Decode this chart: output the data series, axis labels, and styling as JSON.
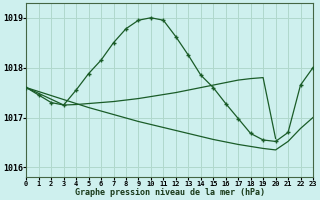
{
  "title": "Graphe pression niveau de la mer (hPa)",
  "bg_color": "#cef0ee",
  "grid_color": "#b0d8cc",
  "line_color": "#1a5c28",
  "xlim": [
    0,
    23
  ],
  "ylim": [
    1015.8,
    1019.3
  ],
  "yticks": [
    1016,
    1017,
    1018,
    1019
  ],
  "xticks": [
    0,
    1,
    2,
    3,
    4,
    5,
    6,
    7,
    8,
    9,
    10,
    11,
    12,
    13,
    14,
    15,
    16,
    17,
    18,
    19,
    20,
    21,
    22,
    23
  ],
  "series_main_x": [
    0,
    1,
    2,
    3,
    4,
    5,
    6,
    7,
    8,
    9,
    10,
    11,
    12,
    13,
    14,
    15,
    16,
    17,
    18,
    19,
    20,
    21,
    22,
    23
  ],
  "series_main_y": [
    1017.6,
    1017.45,
    1017.3,
    1017.25,
    1017.55,
    1017.88,
    1018.15,
    1018.5,
    1018.78,
    1018.95,
    1019.0,
    1018.95,
    1018.62,
    1018.25,
    1017.85,
    1017.6,
    1017.28,
    1016.98,
    1016.68,
    1016.55,
    1016.52,
    1016.7,
    1017.65,
    1018.0
  ],
  "series_trend_x": [
    0,
    1,
    2,
    3,
    4,
    5,
    6,
    7,
    8,
    9,
    10,
    11,
    12,
    13,
    14,
    15,
    16,
    17,
    18,
    19,
    20,
    21,
    22,
    23
  ],
  "series_trend_y": [
    1017.6,
    1017.52,
    1017.44,
    1017.36,
    1017.28,
    1017.2,
    1017.13,
    1017.06,
    1016.99,
    1016.92,
    1016.86,
    1016.8,
    1016.74,
    1016.68,
    1016.62,
    1016.56,
    1016.51,
    1016.46,
    1016.42,
    1016.38,
    1016.35,
    1016.52,
    1016.78,
    1017.0
  ],
  "series_extra_x": [
    0,
    3,
    4,
    5,
    6,
    7,
    8,
    9,
    10,
    11,
    12,
    13,
    14,
    15,
    16,
    17,
    18,
    19,
    20
  ],
  "series_extra_y": [
    1017.6,
    1017.25,
    1017.26,
    1017.28,
    1017.3,
    1017.32,
    1017.35,
    1017.38,
    1017.42,
    1017.46,
    1017.5,
    1017.55,
    1017.6,
    1017.65,
    1017.7,
    1017.75,
    1017.78,
    1017.8,
    1016.58
  ]
}
